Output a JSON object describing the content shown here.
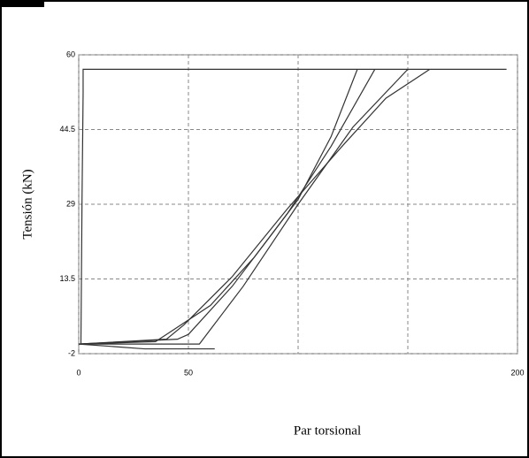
{
  "chart_data": {
    "type": "line",
    "xlabel": "Par torsional",
    "ylabel": "Tensión (kN)",
    "xlim": [
      0,
      200
    ],
    "ylim": [
      -2,
      60
    ],
    "xticks": [
      0,
      50,
      {
        "value": 100,
        "label": null
      },
      {
        "value": 150,
        "label": null
      },
      200
    ],
    "yticks": [
      -2,
      13.5,
      29,
      44.5,
      60
    ],
    "grid": true,
    "series": [
      {
        "color": "#333333",
        "x": [
          1,
          1.5,
          2,
          2,
          195
        ],
        "values": [
          0,
          30,
          52,
          57,
          57
        ]
      },
      {
        "color": "#333333",
        "x": [
          0,
          35,
          40,
          60,
          80,
          100,
          115,
          127
        ],
        "values": [
          0,
          0.5,
          2,
          8,
          18,
          30,
          43,
          57
        ]
      },
      {
        "color": "#333333",
        "x": [
          0,
          45,
          50,
          70,
          95,
          115,
          135
        ],
        "values": [
          0,
          1,
          2,
          12,
          27,
          41,
          57
        ]
      },
      {
        "color": "#333333",
        "x": [
          0,
          55,
          60,
          75,
          100,
          125,
          150
        ],
        "values": [
          0,
          0,
          3,
          12,
          29,
          45,
          57
        ]
      },
      {
        "color": "#333333",
        "x": [
          0,
          40,
          48,
          70,
          95,
          120,
          140,
          160
        ],
        "values": [
          0,
          1,
          4,
          14,
          28,
          41,
          51,
          57
        ]
      },
      {
        "color": "#333333",
        "x": [
          0,
          30,
          62
        ],
        "values": [
          0,
          -1,
          -1
        ]
      }
    ]
  }
}
